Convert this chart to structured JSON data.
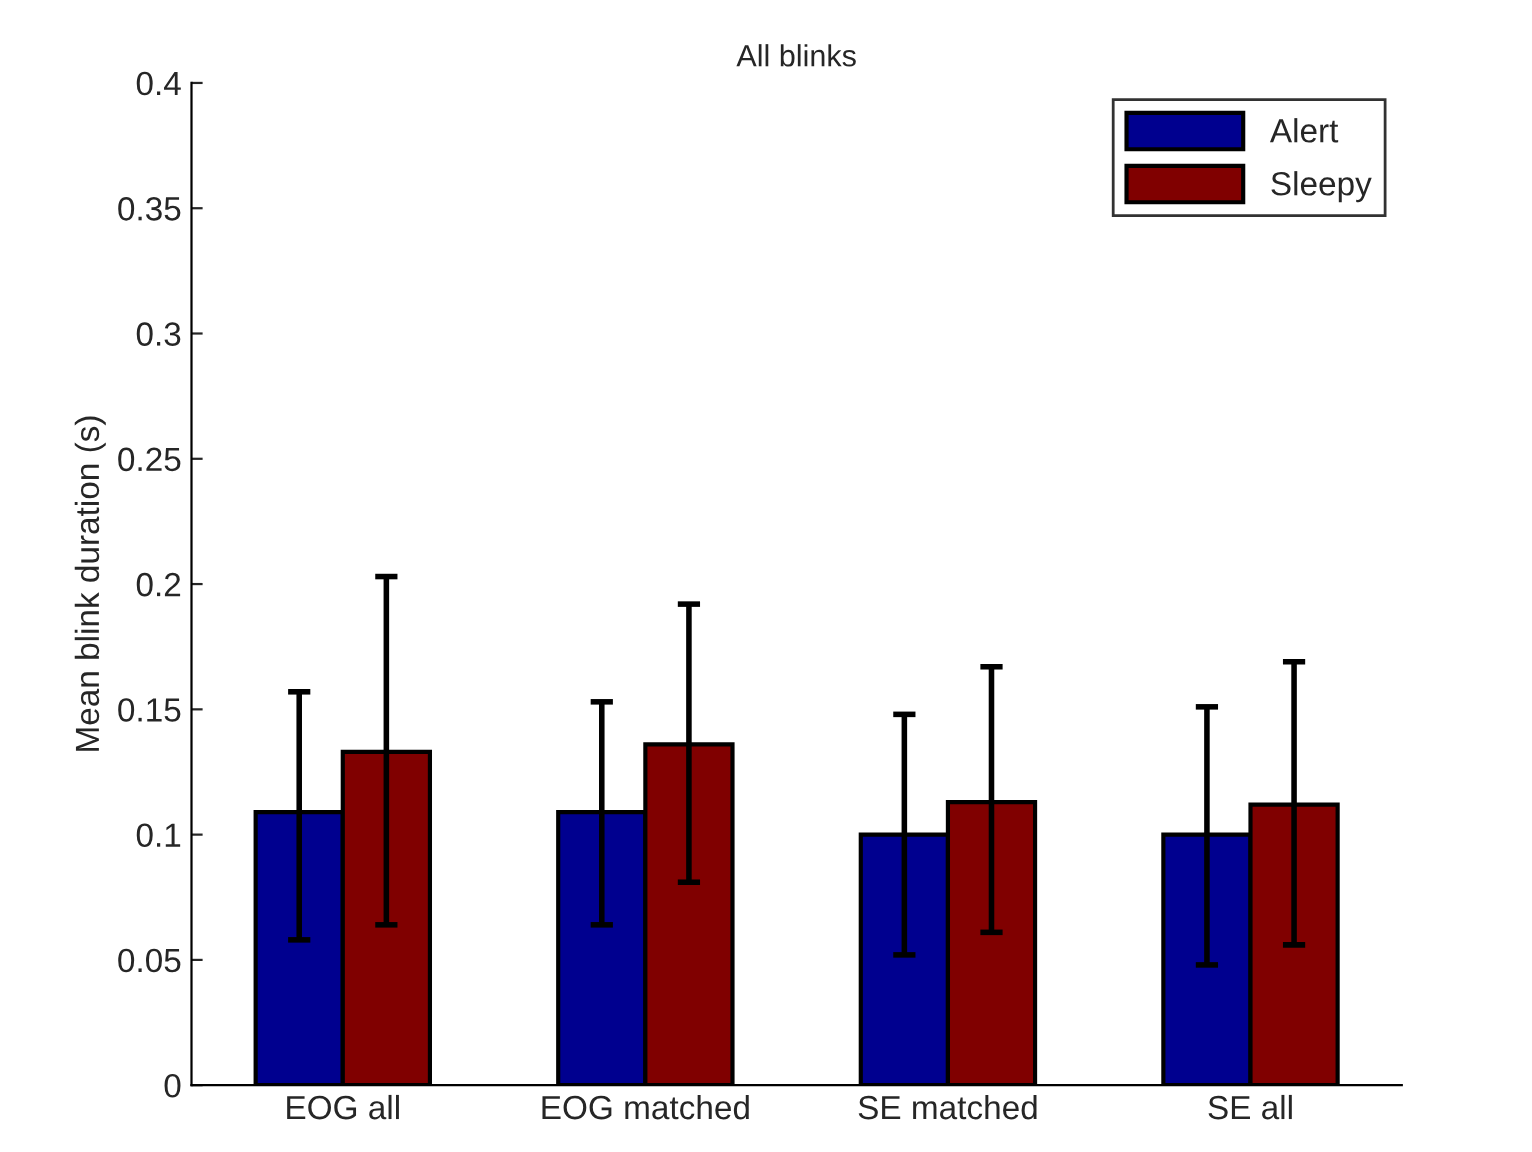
{
  "chart_data": {
    "type": "bar",
    "title": "All blinks",
    "ylabel": "Mean blink duration (s)",
    "categories": [
      "EOG all",
      "EOG matched",
      "SE matched",
      "SE all"
    ],
    "series": [
      {
        "name": "Alert",
        "color": "#00008f",
        "values": [
          0.109,
          0.109,
          0.1,
          0.1
        ],
        "errors": [
          [
            0.058,
            0.157
          ],
          [
            0.064,
            0.153
          ],
          [
            0.052,
            0.148
          ],
          [
            0.048,
            0.151
          ]
        ]
      },
      {
        "name": "Sleepy",
        "color": "#800000",
        "values": [
          0.133,
          0.136,
          0.113,
          0.112
        ],
        "errors": [
          [
            0.064,
            0.203
          ],
          [
            0.081,
            0.192
          ],
          [
            0.061,
            0.167
          ],
          [
            0.056,
            0.169
          ]
        ]
      }
    ],
    "ylim": [
      0,
      0.4
    ],
    "yticks": [
      0,
      0.05,
      0.1,
      0.15,
      0.2,
      0.25,
      0.3,
      0.35,
      0.4
    ],
    "grid": false,
    "legend": "top right"
  }
}
